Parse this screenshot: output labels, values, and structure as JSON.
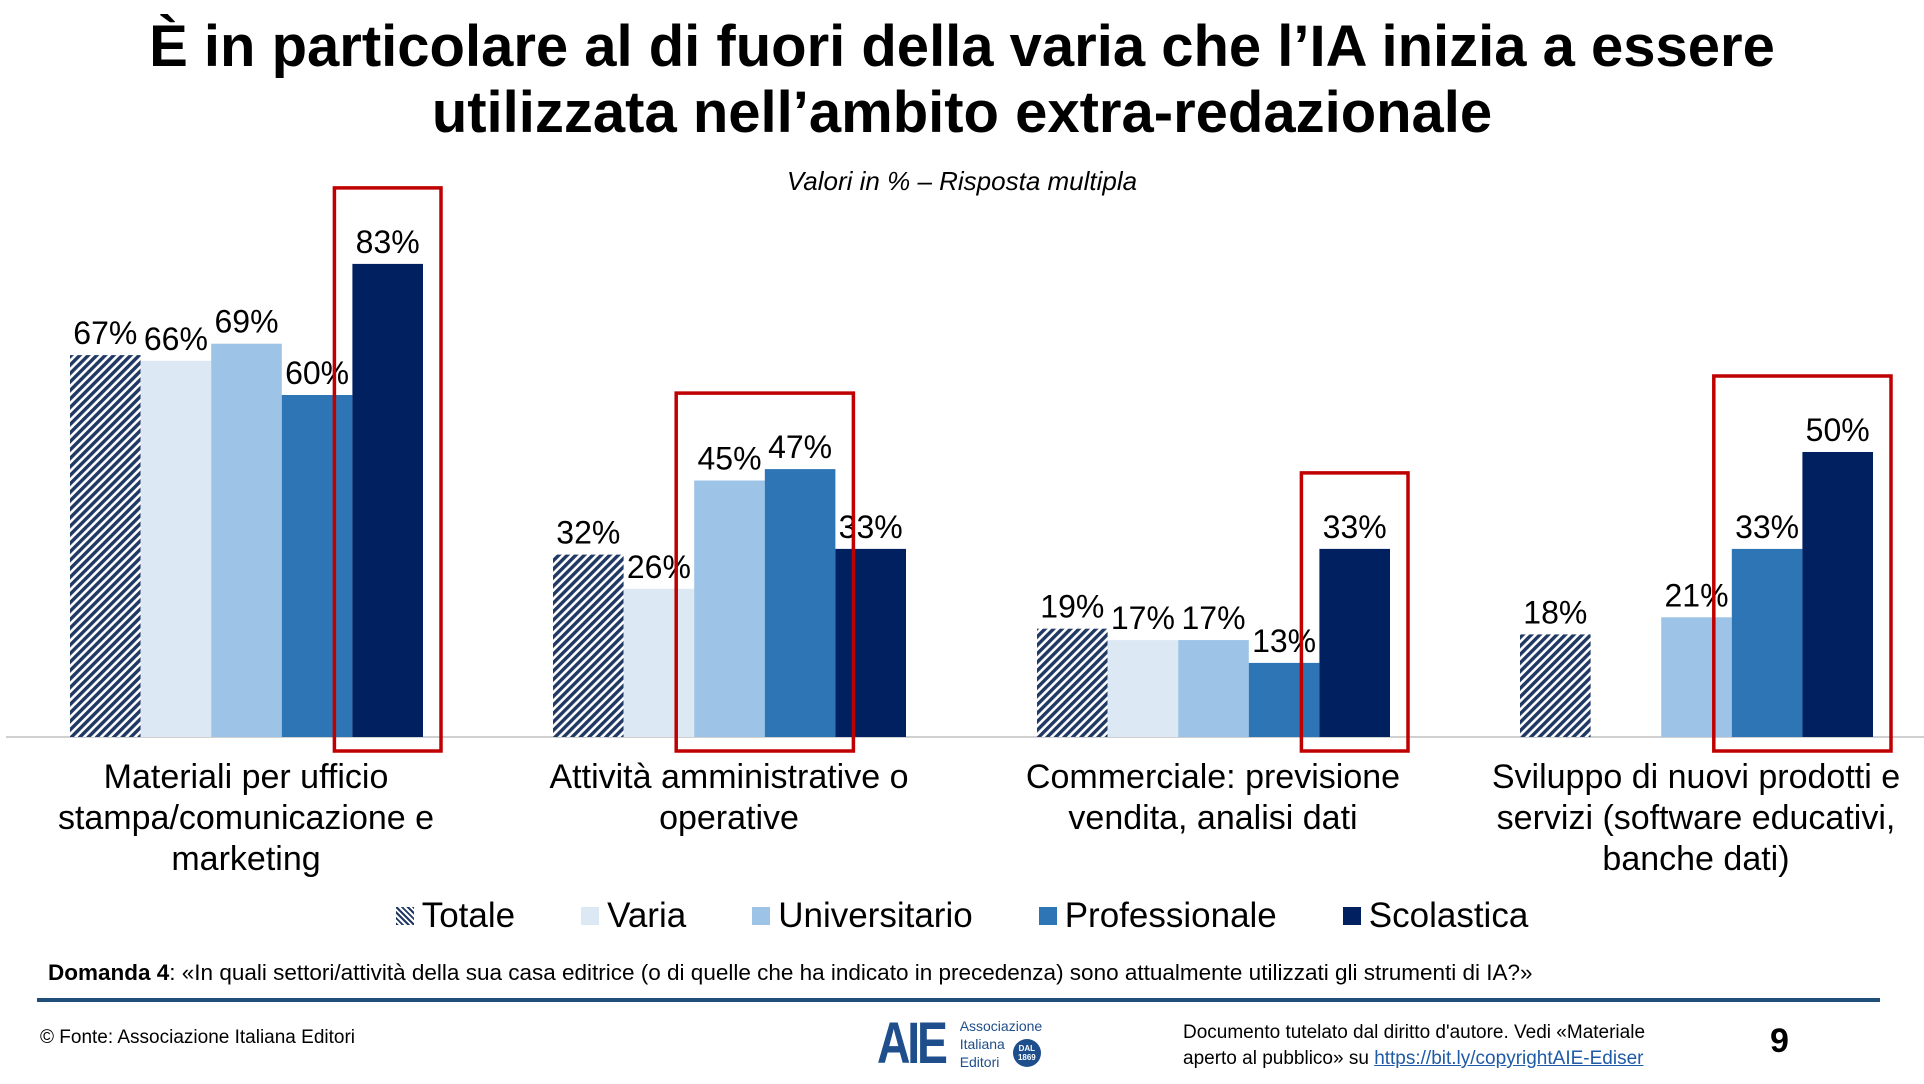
{
  "title": {
    "line1": "È in particolare al di fuori della varia che l’IA inizia a essere",
    "line2": "utilizzata nell’ambito extra-redazionale"
  },
  "subtitle": "Valori in % – Risposta multipla",
  "chart_data": {
    "type": "bar",
    "title": "È in particolare al di fuori della varia che l’IA inizia a essere utilizzata nell’ambito extra-redazionale",
    "subtitle": "Valori in % – Risposta multipla",
    "categories": [
      [
        "Materiali per ufficio",
        "stampa/comunicazione e",
        "marketing"
      ],
      [
        "Attività amministrative o",
        "operative"
      ],
      [
        "Commerciale: previsione",
        "vendita, analisi dati"
      ],
      [
        "Sviluppo di nuovi prodotti e",
        "servizi (software educativi,",
        "banche dati)"
      ]
    ],
    "series": [
      {
        "name": "Totale",
        "color": "#1f3864",
        "pattern": "diagonal-stripes",
        "values": [
          67,
          32,
          19,
          18
        ]
      },
      {
        "name": "Varia",
        "color": "#dde8f5",
        "values": [
          66,
          26,
          17,
          null
        ]
      },
      {
        "name": "Universitario",
        "color": "#9dc3e6",
        "values": [
          69,
          45,
          17,
          21
        ]
      },
      {
        "name": "Professionale",
        "color": "#2e75b6",
        "values": [
          60,
          47,
          13,
          33
        ]
      },
      {
        "name": "Scolastica",
        "color": "#002060",
        "values": [
          83,
          33,
          33,
          50
        ]
      }
    ],
    "value_suffix": "%",
    "ylim": [
      0,
      100
    ],
    "grid": false,
    "legend_position": "bottom",
    "highlight_color": "#c00000",
    "highlights": [
      {
        "category": 0,
        "series": [
          "Scolastica"
        ]
      },
      {
        "category": 1,
        "series": [
          "Universitario",
          "Professionale"
        ]
      },
      {
        "category": 2,
        "series": [
          "Scolastica"
        ]
      },
      {
        "category": 3,
        "series": [
          "Professionale",
          "Scolastica"
        ]
      }
    ]
  },
  "question": {
    "label": "Domanda 4",
    "text": ": «In quali settori/attività della sua casa editrice (o di quelle che ha indicato in precedenza) sono attualmente utilizzati gli strumenti di IA?»"
  },
  "footer": {
    "source": "© Fonte: Associazione Italiana Editori",
    "logo": {
      "mark": "AIE",
      "line1": "Associazione",
      "line2": "Italiana",
      "line3": "Editori",
      "seal": "DAL 1869"
    },
    "copyright_text1": "Documento tutelato dal diritto d'autore. Vedi «Materiale",
    "copyright_text2": "aperto al pubblico» su ",
    "copyright_link": "https://bit.ly/copyrightAIE-Ediser",
    "page_number": "9"
  }
}
